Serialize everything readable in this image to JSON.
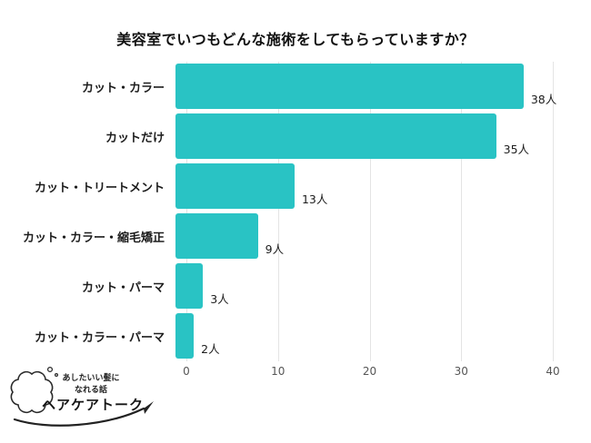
{
  "chart_data": {
    "type": "bar",
    "orientation": "horizontal",
    "title": "美容室でいつもどんな施術をしてもらっていますか？",
    "categories": [
      "カット・カラー",
      "カットだけ",
      "カット・トリートメント",
      "カット・カラー・縮毛矯正",
      "カット・パーマ",
      "カット・カラー・パーマ"
    ],
    "values": [
      38,
      35,
      13,
      9,
      3,
      2
    ],
    "value_labels": [
      "38人",
      "35人",
      "13人",
      "9人",
      "3人",
      "2人"
    ],
    "xlabel": "",
    "ylabel": "",
    "xlim": [
      0,
      40
    ],
    "x_ticks": [
      0,
      10,
      20,
      30,
      40
    ],
    "grid": true,
    "legend": false,
    "bar_color": "#29c3c4",
    "gridline_color": "#e4e4e4"
  },
  "logo": {
    "tagline_line1": "あしたいい髪に",
    "tagline_line2": "なれる話",
    "name": "ヘアケアトーク"
  }
}
